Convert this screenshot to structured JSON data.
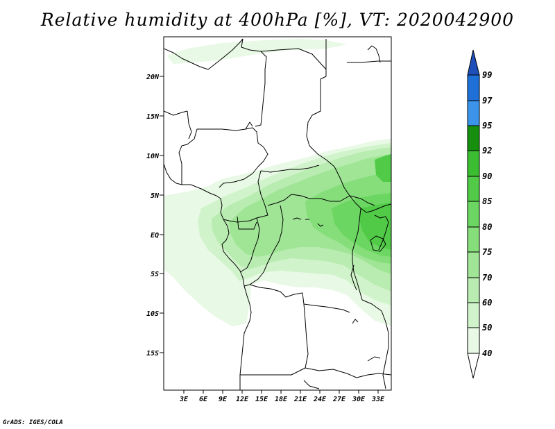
{
  "title": "Relative humidity at 400hPa [%], VT: 2020042900",
  "credit": "GrADS: IGES/COLA",
  "map": {
    "lat_labels": [
      "20N",
      "15N",
      "10N",
      "5N",
      "EQ",
      "5S",
      "10S",
      "15S"
    ],
    "lon_labels": [
      "3E",
      "6E",
      "9E",
      "12E",
      "15E",
      "18E",
      "21E",
      "24E",
      "27E",
      "30E",
      "33E"
    ]
  },
  "colorbar": {
    "levels": [
      "40",
      "50",
      "60",
      "70",
      "75",
      "80",
      "85",
      "90",
      "92",
      "95",
      "97",
      "99"
    ],
    "colors": [
      "#ffffff",
      "#e8f9e5",
      "#d1f3cb",
      "#b8ecb0",
      "#9fe595",
      "#86de7b",
      "#6bd661",
      "#51cb47",
      "#3bbd31",
      "#26ae1d",
      "#168f0e",
      "#3b94ea",
      "#1e6fd8",
      "#1f4fb8"
    ]
  }
}
